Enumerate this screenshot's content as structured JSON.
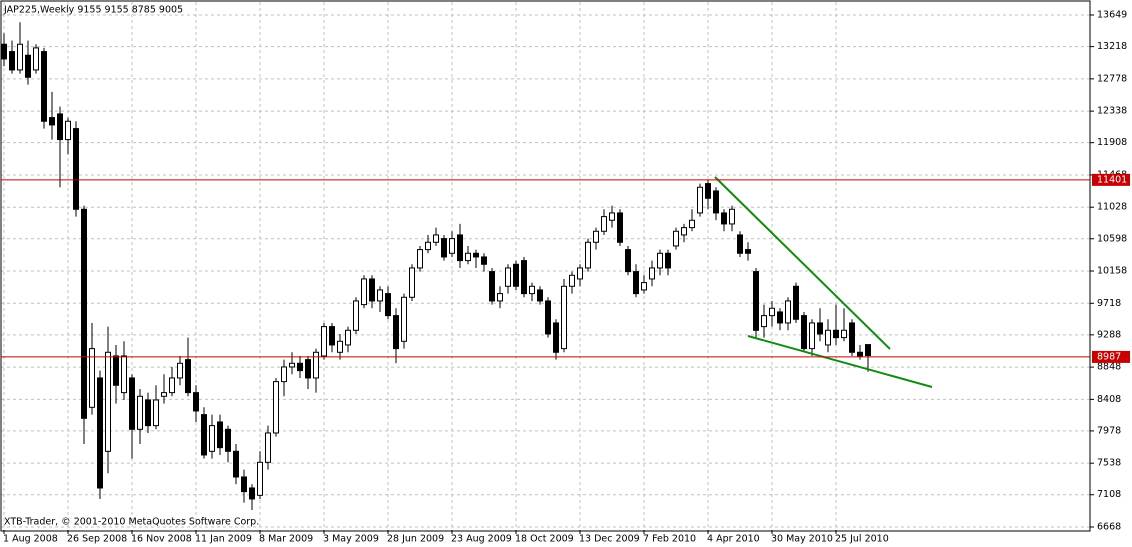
{
  "chart_data": {
    "type": "candlestick",
    "title": "JAP225,Weekly  9155 9155 8785 9005",
    "footer": "XTB-Trader, © 2001-2010 MetaQuotes Software Corp.",
    "categories": [
      "1 Aug 2008",
      null,
      null,
      null,
      null,
      null,
      null,
      null,
      "26 Sep 2008",
      null,
      null,
      null,
      null,
      null,
      null,
      null,
      "16 Nov 2008",
      null,
      null,
      null,
      null,
      null,
      null,
      null,
      "11 Jan 2009",
      null,
      null,
      null,
      null,
      null,
      null,
      null,
      "8 Mar 2009",
      null,
      null,
      null,
      null,
      null,
      null,
      null,
      "3 May 2009",
      null,
      null,
      null,
      null,
      null,
      null,
      null,
      "28 Jun 2009",
      null,
      null,
      null,
      null,
      null,
      null,
      null,
      "23 Aug 2009",
      null,
      null,
      null,
      null,
      null,
      null,
      null,
      "18 Oct 2009",
      null,
      null,
      null,
      null,
      null,
      null,
      null,
      "13 Dec 2009",
      null,
      null,
      null,
      null,
      null,
      null,
      null,
      "7 Feb 2010",
      null,
      null,
      null,
      null,
      null,
      null,
      null,
      "4 Apr 2010",
      null,
      null,
      null,
      null,
      null,
      null,
      null,
      "30 May 2010",
      null,
      null,
      null,
      null,
      null,
      null,
      null,
      "25 Jul 2010",
      null,
      null,
      null,
      null
    ],
    "series": {
      "up_color": "#ffffff",
      "down_color": "#000000",
      "line_color": "#000000",
      "open": [
        13250,
        13150,
        12900,
        13100,
        12900,
        13150,
        12250,
        12300,
        11950,
        12100,
        11000,
        8300,
        8700,
        7700,
        9000,
        8500,
        8700,
        8000,
        8400,
        8050,
        8450,
        8500,
        8700,
        8950,
        8500,
        8200,
        7700,
        8100,
        8000,
        7700,
        7350,
        7200,
        7100,
        7550,
        7950,
        8650,
        8850,
        8900,
        8950,
        8700,
        9000,
        9400,
        9050,
        9150,
        9350,
        9700,
        10050,
        9750,
        9850,
        9550,
        9200,
        9800,
        10200,
        10450,
        10550,
        10600,
        10400,
        10650,
        10300,
        10400,
        10350,
        10150,
        9750,
        9950,
        10250,
        10300,
        9850,
        9900,
        9750,
        9450,
        9100,
        9950,
        10050,
        10200,
        10550,
        10700,
        10850,
        10950,
        10450,
        10150,
        9900,
        10050,
        10200,
        10400,
        10500,
        10650,
        10750,
        10950,
        11350,
        11250,
        10950,
        10800,
        10650,
        10450,
        10150,
        9400,
        9550,
        9600,
        9450,
        9950,
        9550,
        9100,
        9450,
        9150,
        9350,
        9250,
        9450,
        9050,
        9155
      ],
      "high": [
        13400,
        13300,
        13550,
        13300,
        13250,
        13200,
        12600,
        12400,
        12250,
        12200,
        11050,
        9450,
        8800,
        9400,
        9150,
        9200,
        8750,
        8550,
        8500,
        8600,
        8750,
        8850,
        9000,
        9250,
        8600,
        8300,
        8200,
        8200,
        8050,
        7800,
        7450,
        7250,
        7700,
        8050,
        8700,
        8950,
        9050,
        9000,
        9000,
        9100,
        9450,
        9450,
        9300,
        9400,
        9800,
        10100,
        10100,
        9950,
        9950,
        9650,
        9850,
        10250,
        10500,
        10650,
        10750,
        10650,
        10700,
        10800,
        10500,
        10450,
        10400,
        10200,
        9950,
        10250,
        10300,
        10350,
        10000,
        9950,
        9800,
        9500,
        10050,
        10150,
        10250,
        10600,
        10750,
        11000,
        11050,
        11000,
        10500,
        10250,
        10100,
        10300,
        10450,
        10450,
        10750,
        10800,
        11000,
        11350,
        11400,
        11300,
        11000,
        11050,
        10700,
        10550,
        10200,
        9700,
        9750,
        9650,
        9800,
        10000,
        9600,
        9500,
        9650,
        9500,
        9700,
        9650,
        9500,
        9150,
        9155
      ],
      "low": [
        12950,
        12850,
        12850,
        12700,
        12850,
        12100,
        11950,
        11300,
        11750,
        10900,
        7800,
        8200,
        7050,
        7400,
        8350,
        8400,
        7600,
        7800,
        7950,
        8000,
        8350,
        8450,
        8600,
        8450,
        8100,
        7600,
        7600,
        7650,
        7550,
        7250,
        7000,
        6900,
        7050,
        7450,
        7900,
        8450,
        8750,
        8700,
        8550,
        8500,
        8950,
        9050,
        8950,
        9050,
        9300,
        9650,
        9650,
        9600,
        9500,
        8900,
        9100,
        9750,
        10150,
        10400,
        10500,
        10300,
        10350,
        10200,
        10250,
        10200,
        10150,
        9700,
        9650,
        9850,
        9900,
        9800,
        9750,
        9700,
        9250,
        8950,
        9050,
        9850,
        9950,
        10150,
        10450,
        10650,
        10750,
        10500,
        10100,
        9800,
        9850,
        9950,
        10100,
        10100,
        10450,
        10550,
        10700,
        10900,
        11000,
        10850,
        10700,
        10700,
        10350,
        10300,
        9250,
        9250,
        9400,
        9350,
        9350,
        9450,
        9050,
        9000,
        9200,
        9050,
        9150,
        9200,
        9000,
        8950,
        8785
      ],
      "close": [
        13050,
        12900,
        13250,
        12800,
        13200,
        12200,
        12150,
        11950,
        12200,
        11000,
        8150,
        9100,
        7200,
        9050,
        8600,
        9000,
        8000,
        8450,
        8050,
        8400,
        8500,
        8700,
        8900,
        8500,
        8250,
        7650,
        8050,
        7750,
        7700,
        7350,
        7150,
        7050,
        7550,
        7950,
        8650,
        8850,
        8900,
        8800,
        8700,
        9050,
        9400,
        9150,
        9200,
        9350,
        9750,
        10050,
        9750,
        9900,
        9550,
        9100,
        9800,
        10200,
        10450,
        10550,
        10650,
        10350,
        10600,
        10300,
        10400,
        10350,
        10250,
        9750,
        9850,
        10200,
        9950,
        9850,
        9950,
        9750,
        9300,
        9050,
        9950,
        10100,
        10200,
        10550,
        10700,
        10900,
        10950,
        10550,
        10150,
        9850,
        10000,
        10200,
        10400,
        10200,
        10700,
        10750,
        10850,
        11300,
        11150,
        10950,
        10800,
        11000,
        10400,
        10400,
        9350,
        9550,
        9650,
        9450,
        9750,
        9500,
        9100,
        9450,
        9300,
        9350,
        9250,
        9350,
        9050,
        9000,
        9005
      ]
    },
    "hlines": [
      {
        "value": 11401,
        "color": "#c80000"
      },
      {
        "value": 8987,
        "color": "#c80000"
      }
    ],
    "ylim": [
      6627,
      13826
    ],
    "yticks": [
      6668,
      7108,
      7538,
      7978,
      8408,
      8848,
      9288,
      9718,
      10158,
      10598,
      11028,
      11468,
      11908,
      12338,
      12778,
      13218,
      13649
    ],
    "grid": true
  }
}
